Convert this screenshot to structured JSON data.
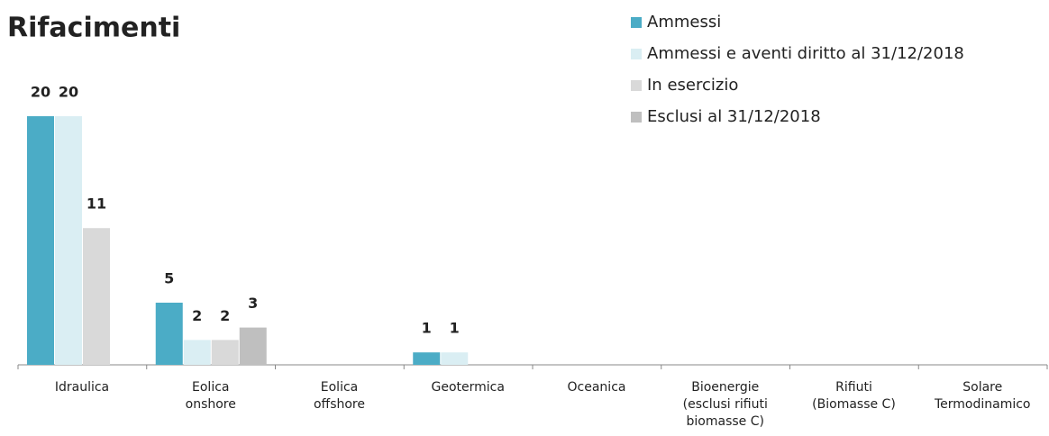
{
  "chart_data": {
    "type": "bar",
    "title": "Rifacimenti",
    "categories": [
      "Idraulica",
      "Eolica\nonshore",
      "Eolica\noffshore",
      "Geotermica",
      "Oceanica",
      "Bioenergie\n(esclusi rifiuti\nbiomasse C)",
      "Rifiuti\n(Biomasse C)",
      "Solare\nTermodinamico"
    ],
    "series": [
      {
        "name": "Ammessi",
        "color": "#4bacc6",
        "values": [
          20,
          5,
          null,
          1,
          null,
          null,
          null,
          null
        ]
      },
      {
        "name": "Ammessi e aventi diritto al 31/12/2018",
        "color": "#daeef3",
        "values": [
          20,
          2,
          null,
          1,
          null,
          null,
          null,
          null
        ]
      },
      {
        "name": "In esercizio",
        "color": "#d9d9d9",
        "values": [
          11,
          2,
          null,
          null,
          null,
          null,
          null,
          null
        ]
      },
      {
        "name": "Esclusi al 31/12/2018",
        "color": "#bfbfbf",
        "values": [
          null,
          3,
          null,
          null,
          null,
          null,
          null,
          null
        ]
      }
    ],
    "legend": "top-right"
  }
}
